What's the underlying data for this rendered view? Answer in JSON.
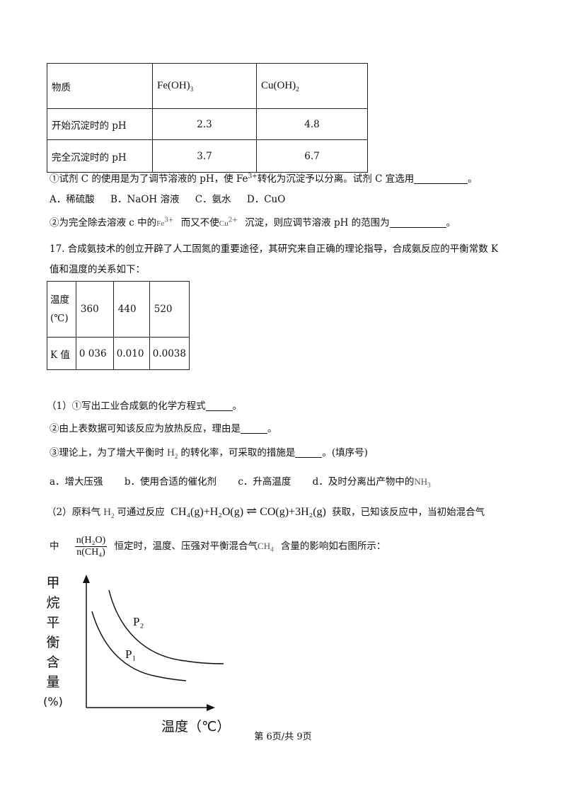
{
  "table1": {
    "header": [
      "物质",
      "Fe(OH)3",
      "Cu(OH)2"
    ],
    "rows": [
      [
        "开始沉淀时的 pH",
        "2.3",
        "4.8"
      ],
      [
        "完全沉淀时的 pH",
        "3.7",
        "6.7"
      ]
    ]
  },
  "q16": {
    "line1_a": "①试剂 C 的使用是为了调节溶液的 pH，使 Fe",
    "line1_sup": "3+",
    "line1_b": "转化为沉淀予以分离。试剂 C 宜选用",
    "line1_end": "。",
    "options": [
      "A．稀硫酸",
      "B．NaOH 溶液",
      "C．氨水",
      "D．CuO"
    ],
    "line2_a": "②为完全除去溶液 c 中的",
    "line2_fe": "Fe",
    "line2_fe_sup": "3+",
    "line2_b": "而又不使",
    "line2_cu": "Cu",
    "line2_cu_sup": "2+",
    "line2_c": "沉淀，则应调节溶液 pH 的范围为",
    "line2_end": "。"
  },
  "q17": {
    "intro1": "17. 合成氨技术的创立开辟了人工固氮的重要途径，其研究来自正确的理论指导，合成氨反应的平衡常数 K",
    "intro2": "值和温度的关系如下：",
    "table": {
      "temp_label_1": "温度",
      "temp_label_2": "(℃)",
      "temps": [
        "360",
        "440",
        "520"
      ],
      "k_label": "K 值",
      "k_values": [
        "0 036",
        "0.010",
        "0.0038"
      ]
    },
    "p1_a": "（1）①写出工业合成氨的化学方程式",
    "p1_end": "。",
    "p2_a": "②由上表数据可知该反应为放热反应，理由是",
    "p2_end": "。",
    "p3_a": "③理论上，为了增大平衡时",
    "p3_h2": "H",
    "p3_h2_sub": "2",
    "p3_b": "的转化率，可采取的措施是",
    "p3_end": "。(填序号)",
    "opt_a": "a．增大压强",
    "opt_b": "b．使用合适的催化剂",
    "opt_c": "c．升高温度",
    "opt_d": "d．及时分离出产物中的",
    "opt_d_chem": "NH",
    "opt_d_sub": "3",
    "p4_a": "（2）原料气",
    "p4_h2": "H",
    "p4_h2_sub": "2",
    "p4_b": "可通过反应",
    "p4_eq_left": "CH₄(g)+H₂O(g)",
    "p4_eq_arrow": "⇌",
    "p4_eq_right": "CO(g)+3H₂(g)",
    "p4_c": "获取，已知该反应中，当初始混合气",
    "p5_a": "中",
    "frac_num": "n(H₂O)",
    "frac_den": "n(CH₄)",
    "p5_b": "恒定时，温度、压强对平衡混合气",
    "p5_chem": "CH",
    "p5_chem_sub": "4",
    "p5_c": "含量的影响如右图所示："
  },
  "figure": {
    "y_label_chars": [
      "甲",
      "烷",
      "平",
      "衡",
      "含",
      "量",
      "(%)"
    ],
    "x_label": "温度（℃）",
    "curve_labels": [
      "P₂",
      "P₁"
    ]
  },
  "footer": "第 6页/共 9页"
}
